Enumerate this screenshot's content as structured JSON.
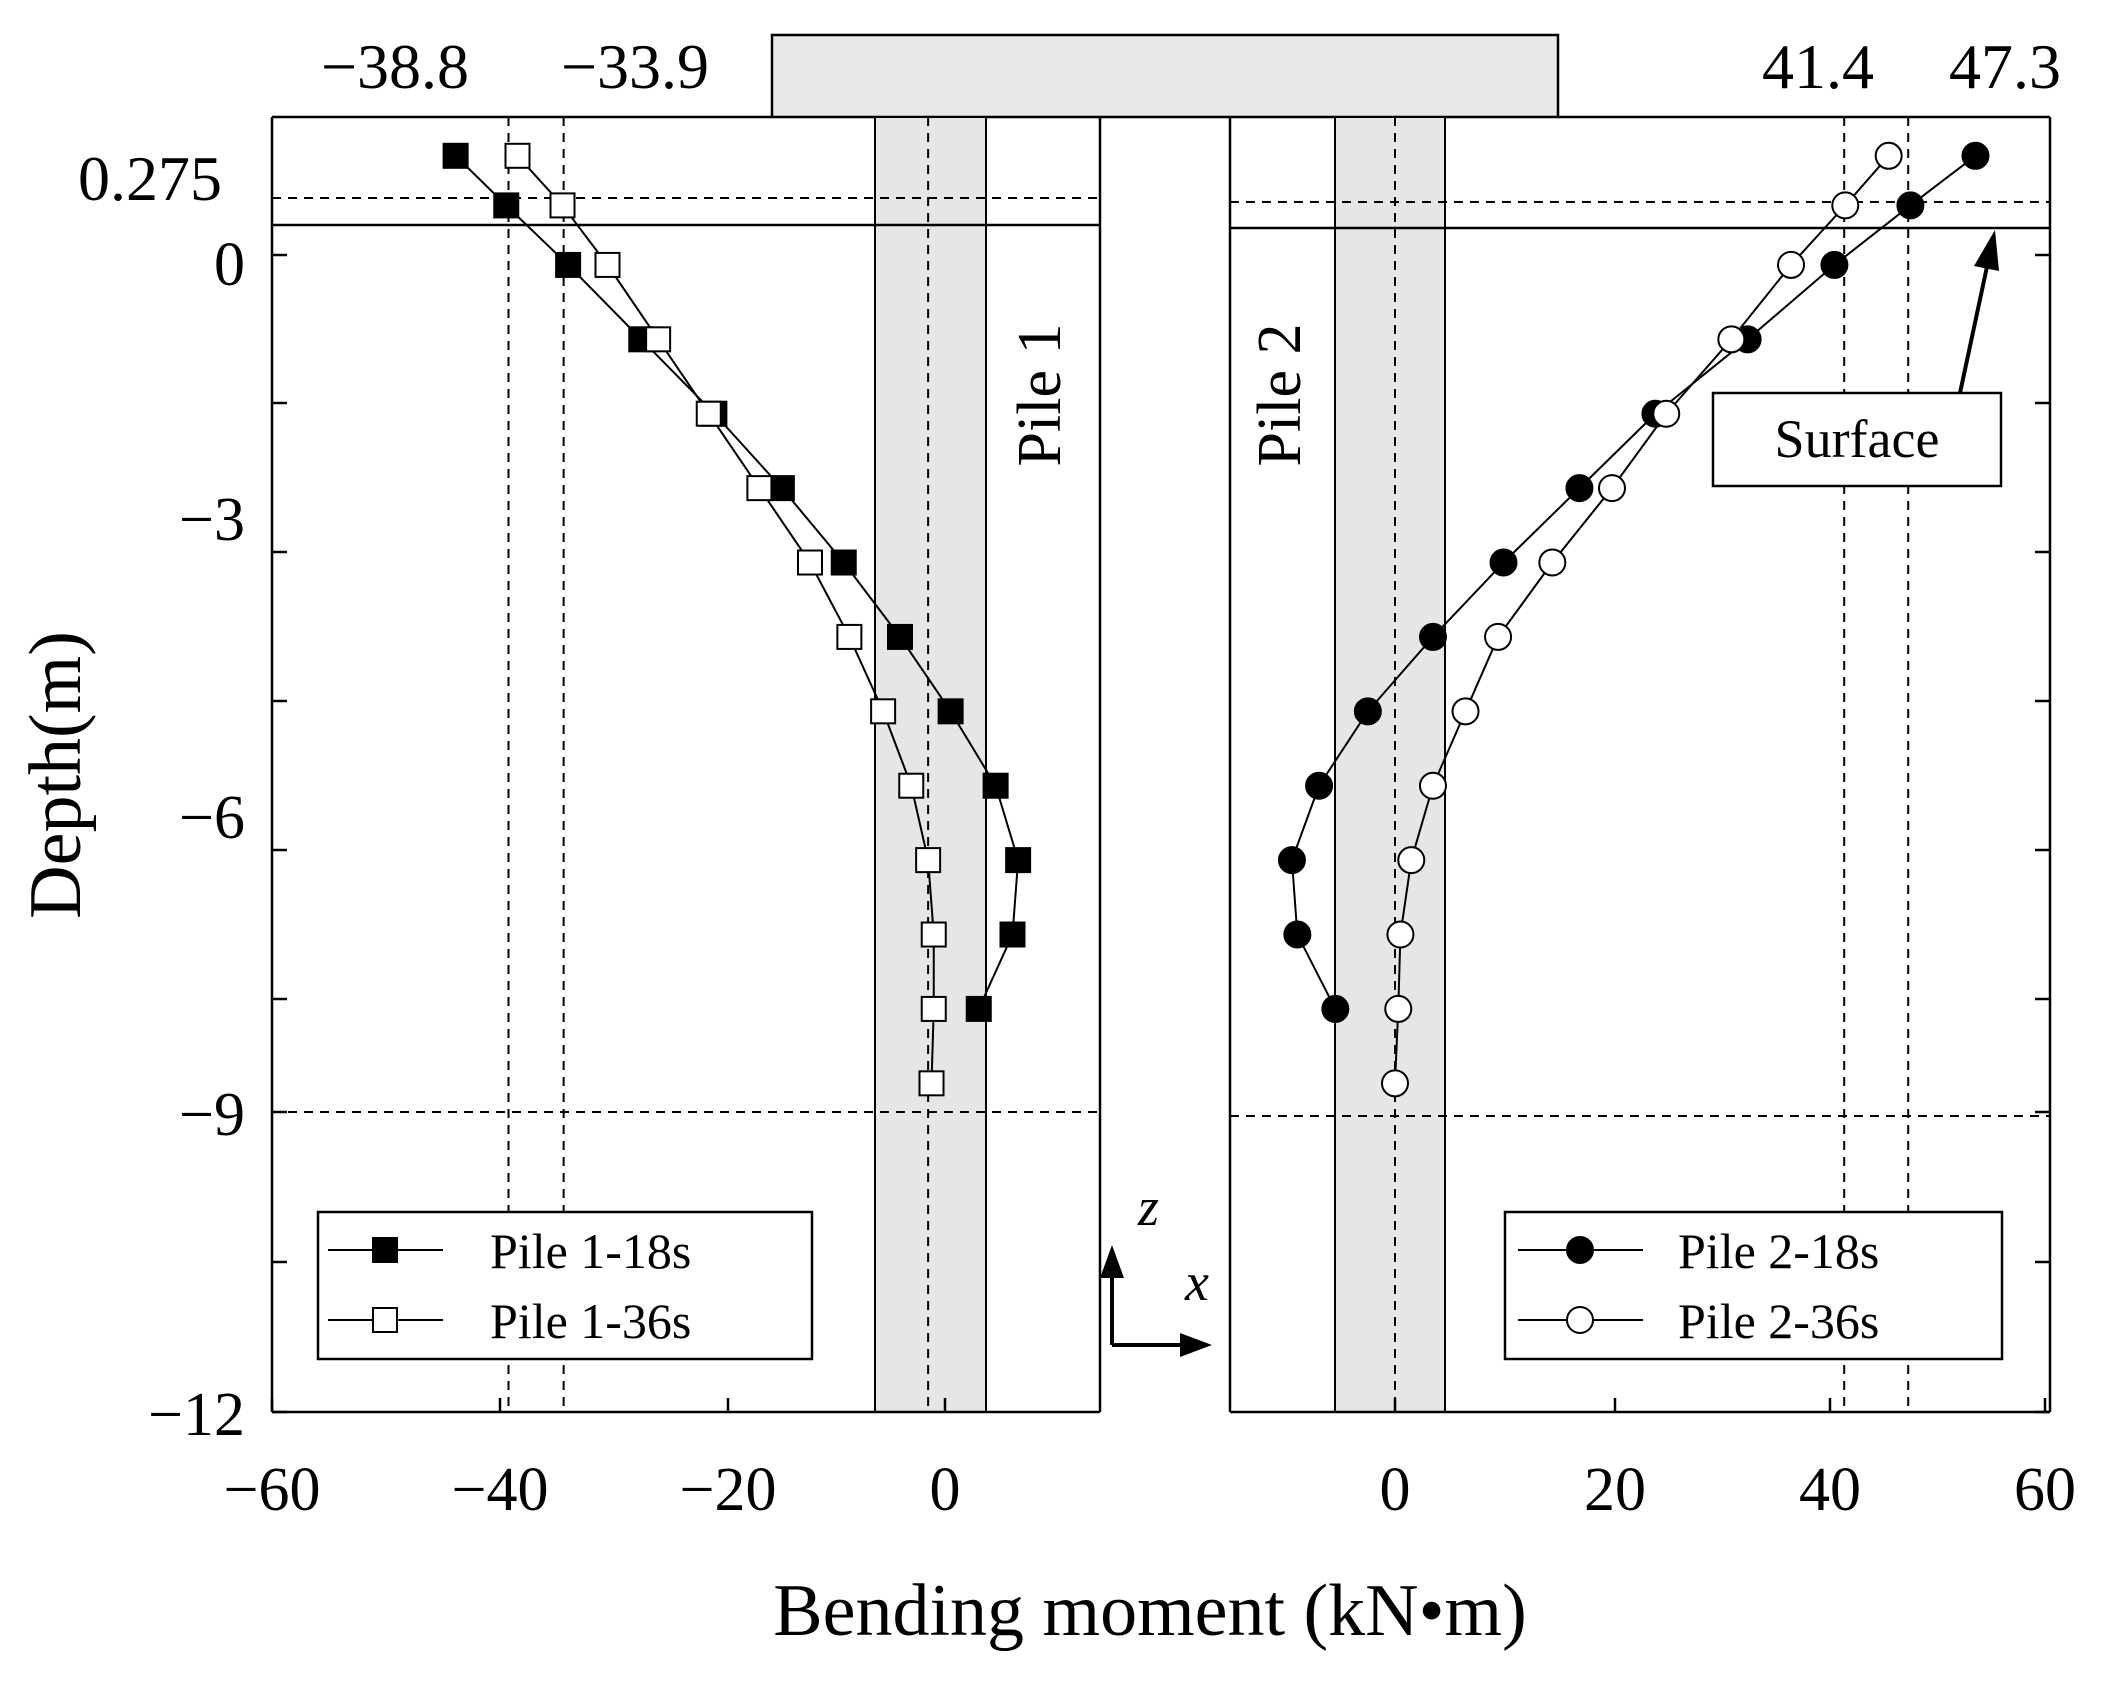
{
  "chart_data": {
    "type": "scatter",
    "xlabel": "Bending moment (kN•m)",
    "ylabel": "Depth(m)",
    "x_tick_labels_left": [
      "−60",
      "−40",
      "−20",
      "0"
    ],
    "x_tick_labels_right": [
      "0",
      "20",
      "40",
      "60"
    ],
    "y_tick_labels": [
      "0",
      "−3",
      "−6",
      "−9",
      "−12"
    ],
    "xlim_left": [
      -60,
      13
    ],
    "xlim_right": [
      -15,
      60
    ],
    "ylim": [
      -12,
      1.2
    ],
    "grid": false,
    "annotations": {
      "top_left_1": "−38.8",
      "top_left_2": "−33.9",
      "top_right_1": "41.4",
      "top_right_2": "47.3",
      "depth_label": "0.275",
      "surface_label": "Surface",
      "axis_z": "z",
      "axis_x": "x"
    },
    "pile_labels": {
      "pile1": "Pile 1",
      "pile2": "Pile 2"
    },
    "legend_left": [
      "Pile  1-18s",
      "Pile  1-36s"
    ],
    "legend_right": [
      "Pile  2-18s",
      "Pile  2-36s"
    ],
    "reference_lines": {
      "left_x": [
        -38.8,
        -33.9,
        -1.5
      ],
      "right_x": [
        0,
        41.4,
        47.3
      ],
      "y": [
        0.275,
        0,
        -9
      ]
    },
    "series": [
      {
        "name": "Pile  1-18s",
        "panel": "left",
        "marker": "square-filled",
        "depth": [
          1.0,
          0.5,
          -0.1,
          -0.85,
          -1.6,
          -2.35,
          -3.1,
          -3.85,
          -4.6,
          -5.35,
          -6.1,
          -6.85,
          -7.6
        ],
        "moment": [
          -43.5,
          -39.0,
          -33.5,
          -27.0,
          -20.5,
          -14.5,
          -9.0,
          -4.0,
          0.5,
          4.5,
          6.5,
          6.0,
          3.0
        ]
      },
      {
        "name": "Pile  1-36s",
        "panel": "left",
        "marker": "square-open",
        "depth": [
          1.0,
          0.5,
          -0.1,
          -0.85,
          -1.6,
          -2.35,
          -3.1,
          -3.85,
          -4.6,
          -5.35,
          -6.1,
          -6.85,
          -7.6,
          -8.35
        ],
        "moment": [
          -38.0,
          -34.0,
          -30.0,
          -25.5,
          -21.0,
          -16.5,
          -12.0,
          -8.5,
          -5.5,
          -3.0,
          -1.5,
          -1.0,
          -1.0,
          -1.2
        ]
      },
      {
        "name": "Pile  2-18s",
        "panel": "right",
        "marker": "circle-filled",
        "depth": [
          1.0,
          0.5,
          -0.1,
          -0.85,
          -1.6,
          -2.35,
          -3.1,
          -3.85,
          -4.6,
          -5.35,
          -6.1,
          -6.85,
          -7.6
        ],
        "moment": [
          53.5,
          47.5,
          40.5,
          32.5,
          24.0,
          17.0,
          10.0,
          3.5,
          -2.5,
          -7.0,
          -9.5,
          -9.0,
          -5.5
        ]
      },
      {
        "name": "Pile  2-36s",
        "panel": "right",
        "marker": "circle-open",
        "depth": [
          1.0,
          0.5,
          -0.1,
          -0.85,
          -1.6,
          -2.35,
          -3.1,
          -3.85,
          -4.6,
          -5.35,
          -6.1,
          -6.85,
          -7.6,
          -8.35
        ],
        "moment": [
          45.5,
          41.5,
          36.5,
          31.0,
          25.0,
          20.0,
          14.5,
          9.5,
          6.5,
          3.5,
          1.5,
          0.5,
          0.3,
          0.0
        ]
      }
    ]
  }
}
